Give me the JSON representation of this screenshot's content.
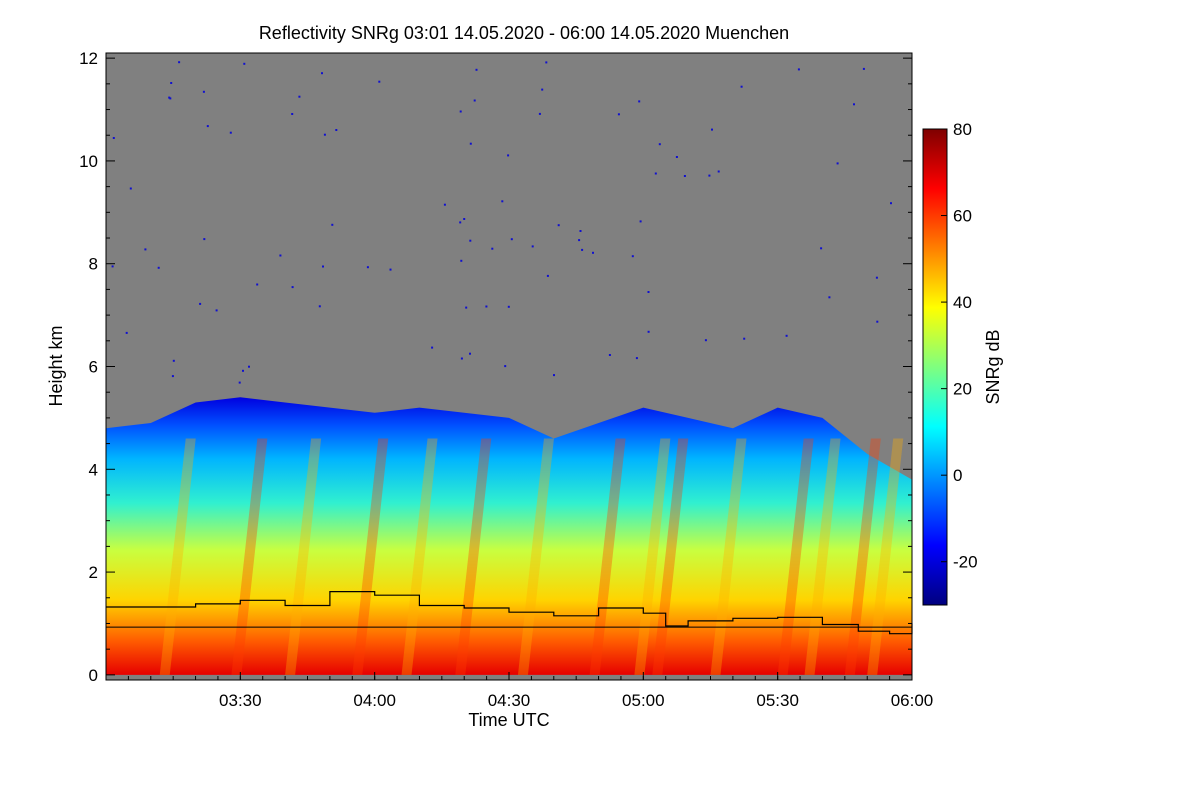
{
  "chart_data": {
    "type": "heatmap",
    "title": "Reflectivity SNRg   03:01 14.05.2020 - 06:00 14.05.2020 Muenchen",
    "xlabel": "Time UTC",
    "ylabel": "Height km",
    "x_range": [
      "03:01",
      "06:01"
    ],
    "ylim": [
      -0.1,
      12.1
    ],
    "x_ticks": [
      "03:30",
      "04:00",
      "04:30",
      "05:00",
      "05:30",
      "06:00"
    ],
    "x_tick_minutes": [
      30,
      60,
      90,
      120,
      150,
      180
    ],
    "y_ticks": [
      0,
      2,
      4,
      6,
      8,
      10,
      12
    ],
    "colorbar": {
      "label": "SNRg dB",
      "range": [
        -30,
        80
      ],
      "ticks": [
        -20,
        0,
        20,
        40,
        60,
        80
      ],
      "colormap": [
        "#00007f",
        "#0000ff",
        "#007fff",
        "#00ffff",
        "#7fff7f",
        "#ffff00",
        "#ff7f00",
        "#ff0000",
        "#7f0000"
      ]
    },
    "background_color": "#808080",
    "cloud_top_km": [
      [
        0,
        4.8
      ],
      [
        10,
        4.9
      ],
      [
        20,
        5.3
      ],
      [
        30,
        5.4
      ],
      [
        40,
        5.3
      ],
      [
        50,
        5.2
      ],
      [
        60,
        5.1
      ],
      [
        70,
        5.2
      ],
      [
        80,
        5.1
      ],
      [
        90,
        5.0
      ],
      [
        100,
        4.6
      ],
      [
        110,
        4.9
      ],
      [
        120,
        5.2
      ],
      [
        130,
        5.0
      ],
      [
        140,
        4.8
      ],
      [
        150,
        5.2
      ],
      [
        160,
        5.0
      ],
      [
        170,
        4.3
      ],
      [
        180,
        3.8
      ]
    ],
    "upper_line_km": [
      [
        0,
        1.32
      ],
      [
        10,
        1.32
      ],
      [
        20,
        1.38
      ],
      [
        30,
        1.45
      ],
      [
        40,
        1.35
      ],
      [
        50,
        1.62
      ],
      [
        60,
        1.55
      ],
      [
        70,
        1.35
      ],
      [
        80,
        1.3
      ],
      [
        90,
        1.22
      ],
      [
        100,
        1.15
      ],
      [
        110,
        1.3
      ],
      [
        120,
        1.2
      ],
      [
        125,
        0.95
      ],
      [
        130,
        1.05
      ],
      [
        140,
        1.1
      ],
      [
        150,
        1.12
      ],
      [
        160,
        0.98
      ],
      [
        168,
        0.85
      ],
      [
        175,
        0.8
      ],
      [
        180,
        1.0
      ]
    ],
    "lower_line_km": [
      [
        0,
        0.93
      ],
      [
        180,
        0.93
      ]
    ]
  }
}
